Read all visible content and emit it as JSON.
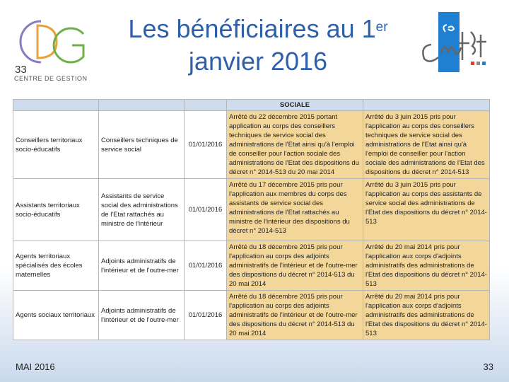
{
  "logo_left": {
    "number": "33",
    "caption": "CENTRE DE GESTION"
  },
  "title": {
    "line1": "Les bénéficiaires au 1",
    "sup": "er",
    "line2": "janvier 2016"
  },
  "table": {
    "header": "SOCIALE",
    "rows": [
      {
        "cadre": "Conseillers territoriaux socio-éducatifs",
        "corps": "Conseillers techniques de service social",
        "date": "01/01/2016",
        "arrete1": "Arrêté du 22 décembre 2015 portant application au corps des conseillers techniques de service social des administrations de l'Etat ainsi qu'à l'emploi de conseiller pour l'action sociale des administrations de l'Etat des dispositions du décret n° 2014-513 du 20 mai 2014",
        "arrete2": "Arrêté du 3 juin 2015 pris pour l'application au corps des conseillers techniques de service social des administrations de l'Etat ainsi qu'à l'emploi de conseiller pour l'action sociale des administrations de l'Etat des dispositions du décret n° 2014-513"
      },
      {
        "cadre": "Assistants territoriaux socio-éducatifs",
        "corps": "Assistants de service social des administrations de l'Etat rattachés au ministre de l'intérieur",
        "date": "01/01/2016",
        "arrete1": "Arrêté du 17 décembre 2015 pris pour l'application aux membres du corps des assistants de service social des administrations de l'Etat rattachés au ministre de l'intérieur des dispositions du décret n° 2014-513",
        "arrete2": "Arrêté du 3 juin 2015 pris pour l'application au corps des assistants de service social des administrations de l'Etat des dispositions du décret n° 2014-513"
      },
      {
        "cadre": "Agents territoriaux spécialisés des écoles maternelles",
        "corps": "Adjoints administratifs de l'intérieur et de l'outre-mer",
        "date": "01/01/2016",
        "arrete1": "Arrêté du 18 décembre 2015 pris pour l'application au corps des adjoints administratifs de l'intérieur et de l'outre-mer des dispositions du décret n° 2014-513 du 20 mai 2014",
        "arrete2": "Arrêté du 20 mai 2014 pris pour l'application aux corps d'adjoints administratifs des administrations de l'Etat des dispositions du décret n° 2014-513"
      },
      {
        "cadre": "Agents sociaux territoriaux",
        "corps": "Adjoints administratifs de l'intérieur et de l'outre-mer",
        "date": "01/01/2016",
        "arrete1": "Arrêté du 18 décembre 2015 pris pour l'application au corps des adjoints administratifs de l'intérieur et de l'outre-mer des dispositions du décret n° 2014-513 du 20 mai 2014",
        "arrete2": "Arrêté du 20 mai 2014 pris pour l'application aux corps d'adjoints administratifs des administrations de l'Etat des dispositions du décret n° 2014-513"
      }
    ]
  },
  "footer": {
    "date": "MAI 2016",
    "page": "33"
  },
  "colors": {
    "title": "#2e5fa8",
    "header_bg": "#cfdcee",
    "highlight": "#f3d79a",
    "cnfpt_blue": "#1f7fd0"
  }
}
